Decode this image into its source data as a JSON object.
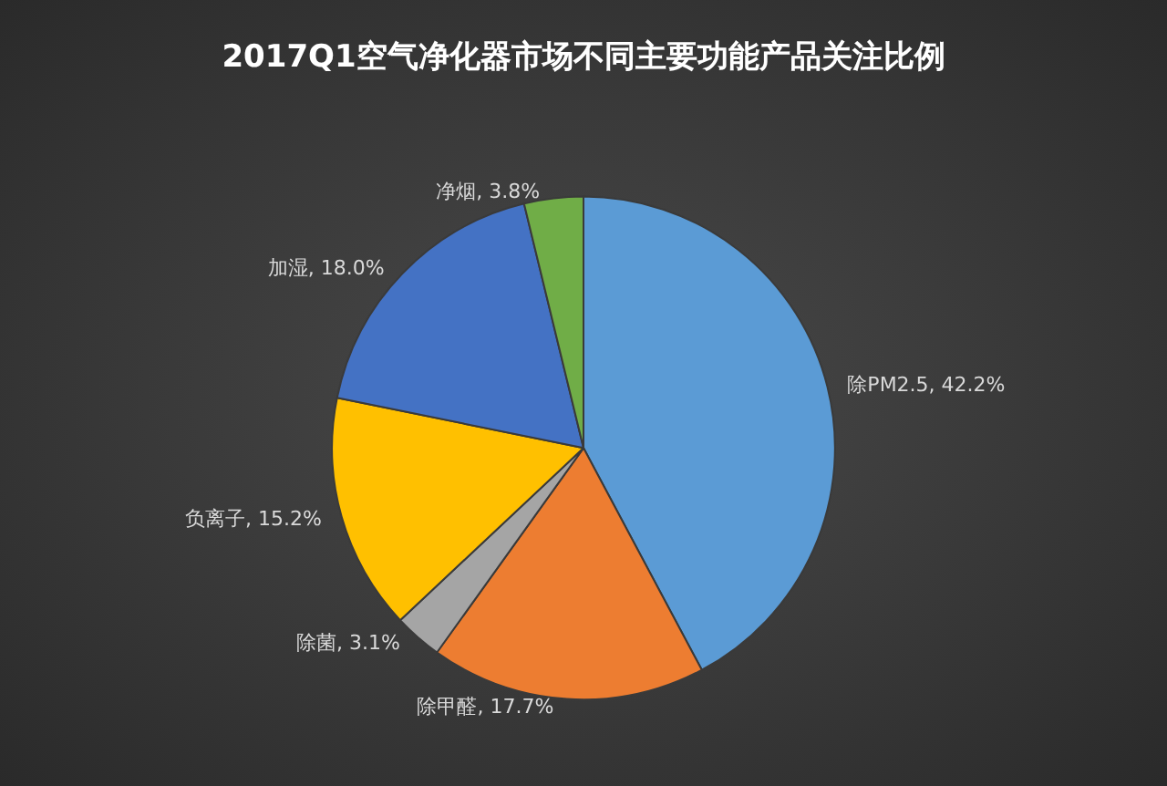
{
  "chart_data": {
    "type": "pie",
    "title": "2017Q1空气净化器市场不同主要功能产品关注比例",
    "categories": [
      "除PM2.5",
      "除甲醛",
      "除菌",
      "负离子",
      "加湿",
      "净烟"
    ],
    "values": [
      42.2,
      17.7,
      3.1,
      15.2,
      18.0,
      3.8
    ],
    "colors": [
      "#5b9bd5",
      "#ed7d31",
      "#a5a5a5",
      "#ffc000",
      "#4472c4",
      "#70ad47"
    ],
    "value_labels": [
      "42.2%",
      "17.7%",
      "3.1%",
      "15.2%",
      "18.0%",
      "3.8%"
    ],
    "legend": false
  }
}
